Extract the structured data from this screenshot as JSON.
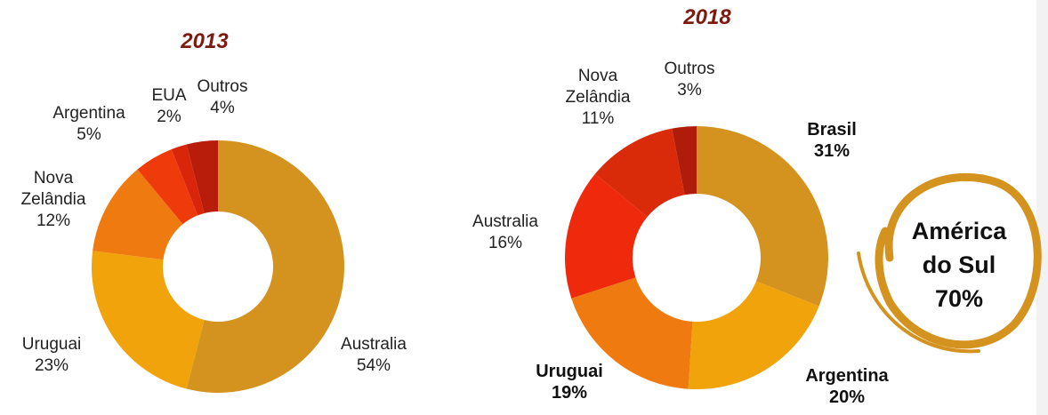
{
  "chart_data": [
    {
      "type": "donut",
      "title": "2013",
      "categories": [
        "Australia",
        "Uruguai",
        "Nova Zelândia",
        "Argentina",
        "EUA",
        "Outros"
      ],
      "values": [
        54,
        23,
        12,
        5,
        2,
        4
      ],
      "value_labels": [
        "54%",
        "23%",
        "12%",
        "5%",
        "2%",
        "4%"
      ],
      "colors": [
        "#d4921f",
        "#f0a30a",
        "#ef7b10",
        "#ef3a0c",
        "#d9260a",
        "#b81c0a"
      ]
    },
    {
      "type": "donut",
      "title": "2018",
      "categories": [
        "Brasil",
        "Argentina",
        "Uruguai",
        "Australia",
        "Nova Zelândia",
        "Outros"
      ],
      "values": [
        31,
        20,
        19,
        16,
        11,
        3
      ],
      "value_labels": [
        "31%",
        "20%",
        "19%",
        "16%",
        "11%",
        "3%"
      ],
      "colors": [
        "#d4921f",
        "#f0a30a",
        "#ef7b10",
        "#ef2a0c",
        "#d92b0a",
        "#b01c0a"
      ],
      "annotation": "América do Sul 70%"
    }
  ]
}
